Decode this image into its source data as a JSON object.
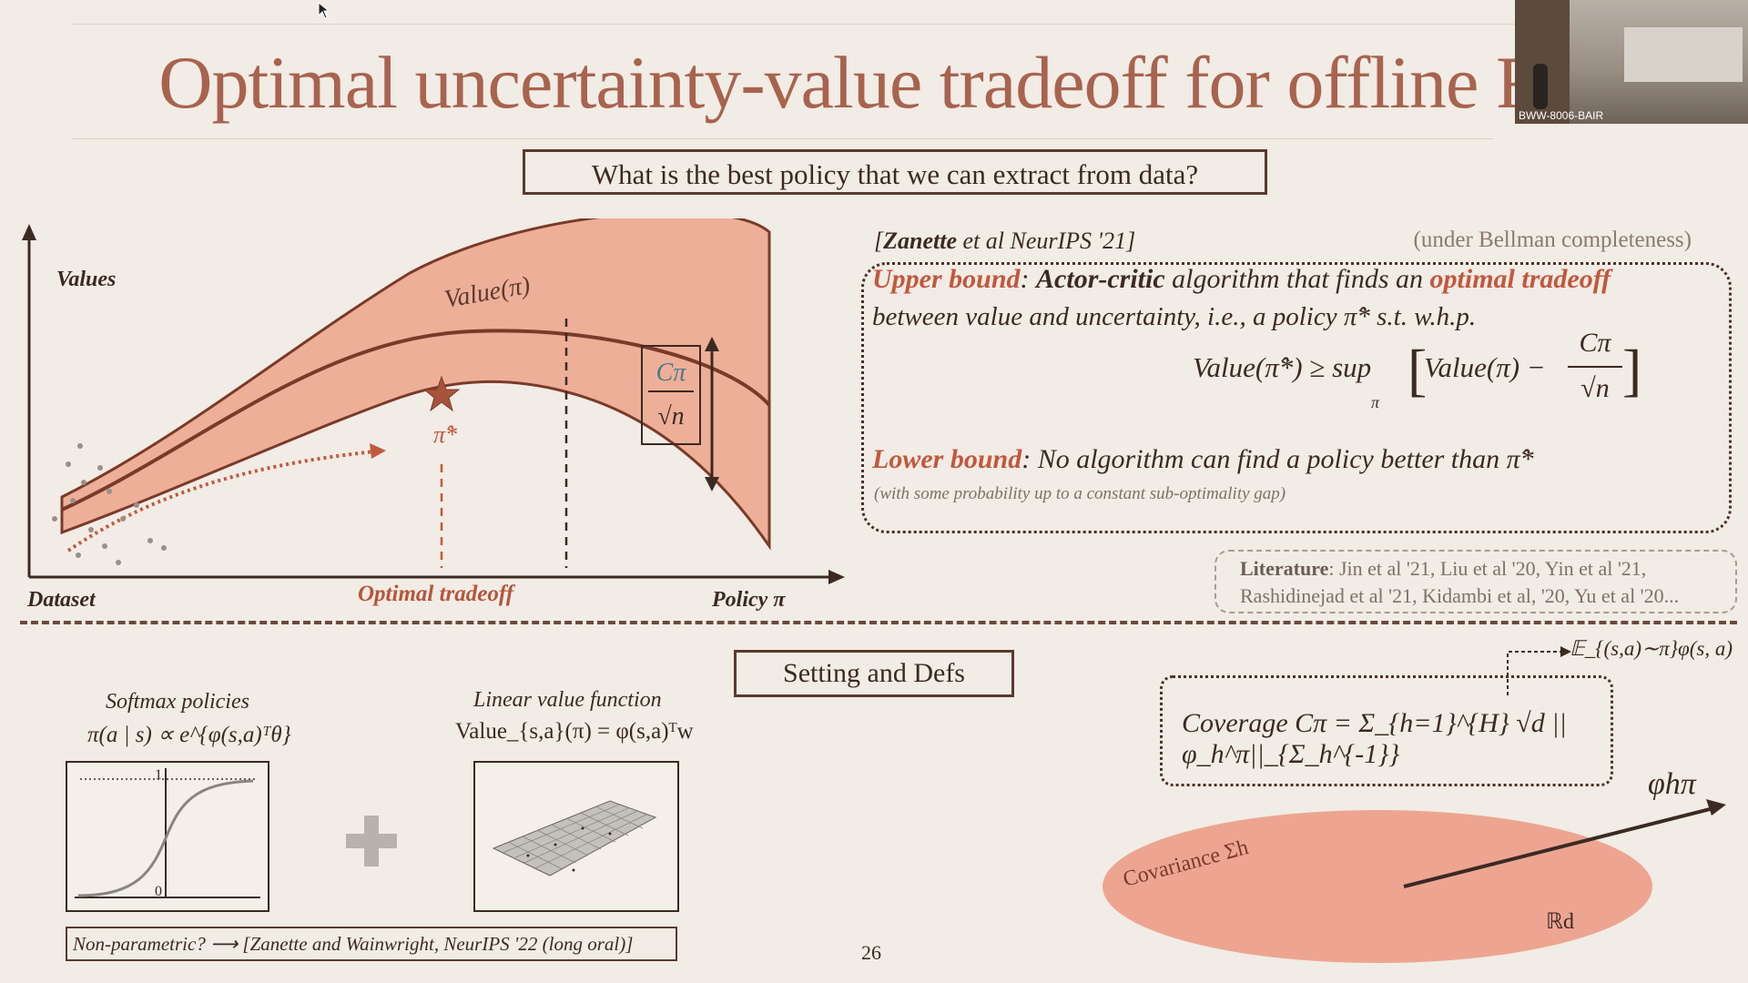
{
  "slide": {
    "title": "Optimal uncertainty-value tradeoff for offline RL",
    "question": "What is the best policy that we can extract from data?",
    "page_number": "26"
  },
  "left_figure": {
    "y_label": "Values",
    "x_left_label": "Dataset",
    "x_mid_label": "Optimal tradeoff",
    "x_right_label": "Policy π",
    "curve_label": "Value(π)",
    "star_label": "π̂*",
    "bar_numerator": "Cπ",
    "bar_denominator": "√n"
  },
  "result": {
    "citation_author": "Zanette",
    "citation_rest": " et al NeurIPS '21]",
    "citation_open": "[",
    "condition": "(under Bellman completeness)",
    "upper_bound_label": "Upper bound",
    "actor_critic": "Actor-critic",
    "line1_mid": " algorithm that finds an ",
    "optimal_tradeoff": "optimal tradeoff",
    "line2": "between value and uncertainty, i.e., a policy π̂* s.t. w.h.p.",
    "formula_lhs": "Value(π̂*) ≥ sup",
    "formula_sub": "π",
    "formula_bracket_value": "Value(π) −",
    "formula_num": "Cπ",
    "formula_den": "√n",
    "lower_bound_label": "Lower bound",
    "lower_bound_text": ": No algorithm can find a policy better than π̂*",
    "lower_bound_note": "(with some probability up to a constant sub-optimality gap)"
  },
  "literature": {
    "label": "Literature",
    "line1": ": Jin et al '21, Liu et al '20, Yin et al '21,",
    "line2": "Rashidinejad et al '21, Kidambi et al, '20, Yu et al '20..."
  },
  "setting": {
    "box_label": "Setting and Defs",
    "softmax_title": "Softmax policies",
    "softmax_formula": "π(a | s) ∝ e^{φ(s,a)ᵀθ}",
    "sigmoid_top": "1",
    "sigmoid_bottom": "0",
    "linear_title": "Linear value function",
    "linear_formula": "Value_{s,a}(π) = φ(s,a)ᵀw",
    "nonparam": "Non-parametric? ⟶ [Zanette and Wainwright, NeurIPS '22 (long oral)]"
  },
  "coverage": {
    "expectation": "𝔼_{(s,a)∼π}φ(s, a)",
    "formula": "Coverage Cπ = Σ_{h=1}^{H} √d ||φ_h^π||_{Σ_h^{-1}}",
    "covariance_label": "Covariance Σh",
    "space_label": "ℝd",
    "vector_label": "φhπ"
  },
  "webcam": {
    "caption": "BWW-8006-BAIR"
  },
  "colors": {
    "accent": "#c1583e",
    "band": "#eeaf99",
    "ellipse": "#eda592"
  }
}
